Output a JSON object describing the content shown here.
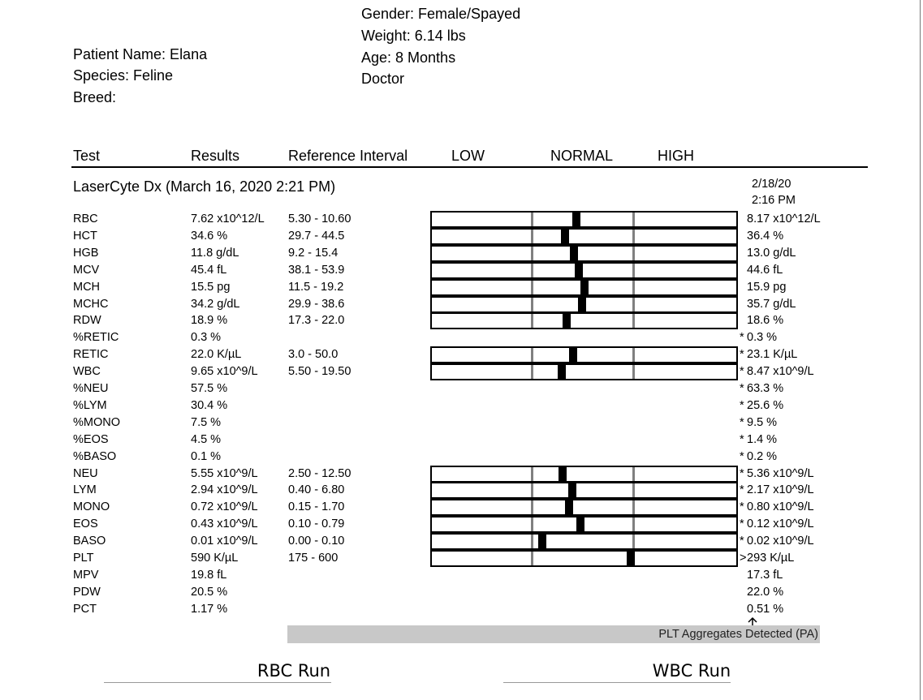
{
  "patient": {
    "gender": "Gender: Female/Spayed",
    "weight": "Weight: 6.14 lbs",
    "age": "Age: 8 Months",
    "doctor": "Doctor",
    "name": "Patient Name: Elana",
    "species": "Species: Feline",
    "breed": "Breed:"
  },
  "table": {
    "headers": [
      "Test",
      "Results",
      "Reference Interval",
      "LOW",
      "NORMAL",
      "HIGH"
    ],
    "section": "LaserCyte Dx (March 16, 2020 2:21 PM)",
    "previous_date": "2/18/20",
    "previous_time": "2:16 PM",
    "rows": [
      {
        "test": "RBC",
        "result": "7.62 x10^12/L",
        "reference": "5.30 - 10.60",
        "previous": "8.17 x10^12/L"
      },
      {
        "test": "HCT",
        "result": "34.6 %",
        "reference": "29.7 - 44.5",
        "previous": "36.4 %"
      },
      {
        "test": "HGB",
        "result": "11.8 g/dL",
        "reference": "9.2 - 15.4",
        "previous": "13.0 g/dL"
      },
      {
        "test": "MCV",
        "result": "45.4 fL",
        "reference": "38.1 - 53.9",
        "previous": "44.6 fL"
      },
      {
        "test": "MCH",
        "result": "15.5 pg",
        "reference": "11.5 - 19.2",
        "previous": "15.9 pg"
      },
      {
        "test": "MCHC",
        "result": "34.2 g/dL",
        "reference": "29.9 - 38.6",
        "previous": "35.7 g/dL"
      },
      {
        "test": "RDW",
        "result": "18.9 %",
        "reference": "17.3 - 22.0",
        "previous": "18.6 %"
      },
      {
        "test": "%RETIC",
        "result": "0.3 %",
        "flag": "*",
        "previous": "0.3 %"
      },
      {
        "test": "RETIC",
        "result": "22.0 K/µL",
        "reference": "3.0 - 50.0",
        "flag": "*",
        "previous": "23.1 K/µL"
      },
      {
        "test": "WBC",
        "result": "9.65 x10^9/L",
        "reference": "5.50 - 19.50",
        "flag": "*",
        "previous": "8.47 x10^9/L"
      },
      {
        "test": "%NEU",
        "result": "57.5 %",
        "flag": "*",
        "previous": "63.3 %"
      },
      {
        "test": "%LYM",
        "result": "30.4 %",
        "flag": "*",
        "previous": "25.6 %"
      },
      {
        "test": "%MONO",
        "result": "7.5 %",
        "flag": "*",
        "previous": "9.5 %"
      },
      {
        "test": "%EOS",
        "result": "4.5 %",
        "flag": "*",
        "previous": "1.4 %"
      },
      {
        "test": "%BASO",
        "result": "0.1 %",
        "flag": "*",
        "previous": "0.2 %"
      },
      {
        "test": "NEU",
        "result": "5.55 x10^9/L",
        "reference": "2.50 - 12.50",
        "flag": "*",
        "previous": "5.36 x10^9/L"
      },
      {
        "test": "LYM",
        "result": "2.94 x10^9/L",
        "reference": "0.40 - 6.80",
        "flag": "*",
        "previous": "2.17 x10^9/L"
      },
      {
        "test": "MONO",
        "result": "0.72 x10^9/L",
        "reference": "0.15 - 1.70",
        "flag": "*",
        "previous": "0.80 x10^9/L"
      },
      {
        "test": "EOS",
        "result": "0.43 x10^9/L",
        "reference": "0.10 - 0.79",
        "flag": "*",
        "previous": "0.12 x10^9/L"
      },
      {
        "test": "BASO",
        "result": "0.01 x10^9/L",
        "reference": "0.00 - 0.10",
        "flag": "*",
        "previous": "0.02 x10^9/L"
      },
      {
        "test": "PLT",
        "result": "590 K/µL",
        "reference": "175 - 600",
        "flag": ">",
        "previous": "293 K/µL"
      },
      {
        "test": "MPV",
        "result": "19.8 fL",
        "previous": "17.3 fL"
      },
      {
        "test": "PDW",
        "result": "20.5 %",
        "previous": "22.0 %"
      },
      {
        "test": "PCT",
        "result": "1.17 %",
        "previous": "0.51 %"
      }
    ],
    "note": "PLT Aggregates Detected (PA)"
  },
  "footer": {
    "rbc": "RBC Run",
    "wbc": "WBC Run"
  }
}
